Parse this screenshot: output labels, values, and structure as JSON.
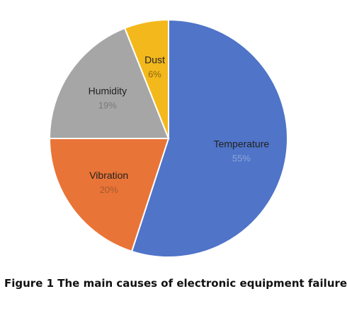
{
  "chart_data": {
    "type": "pie",
    "slices": [
      {
        "label": "Temperature",
        "value": 55,
        "pct_label": "55%",
        "color": "#4f74c8",
        "pct_color": "#8fa6dc"
      },
      {
        "label": "Vibration",
        "value": 20,
        "pct_label": "20%",
        "color": "#e97437",
        "pct_color": "#a65a2e"
      },
      {
        "label": "Humidity",
        "value": 19,
        "pct_label": "19%",
        "color": "#a6a6a6",
        "pct_color": "#7a7a7a"
      },
      {
        "label": "Dust",
        "value": 6,
        "pct_label": "6%",
        "color": "#f3b81b",
        "pct_color": "#8a6a10"
      }
    ],
    "start_angle_deg": 0,
    "direction": "clockwise",
    "slice_border_color": "#ffffff",
    "legend": "none"
  },
  "caption": "Figure 1 The main causes of electronic equipment failure"
}
